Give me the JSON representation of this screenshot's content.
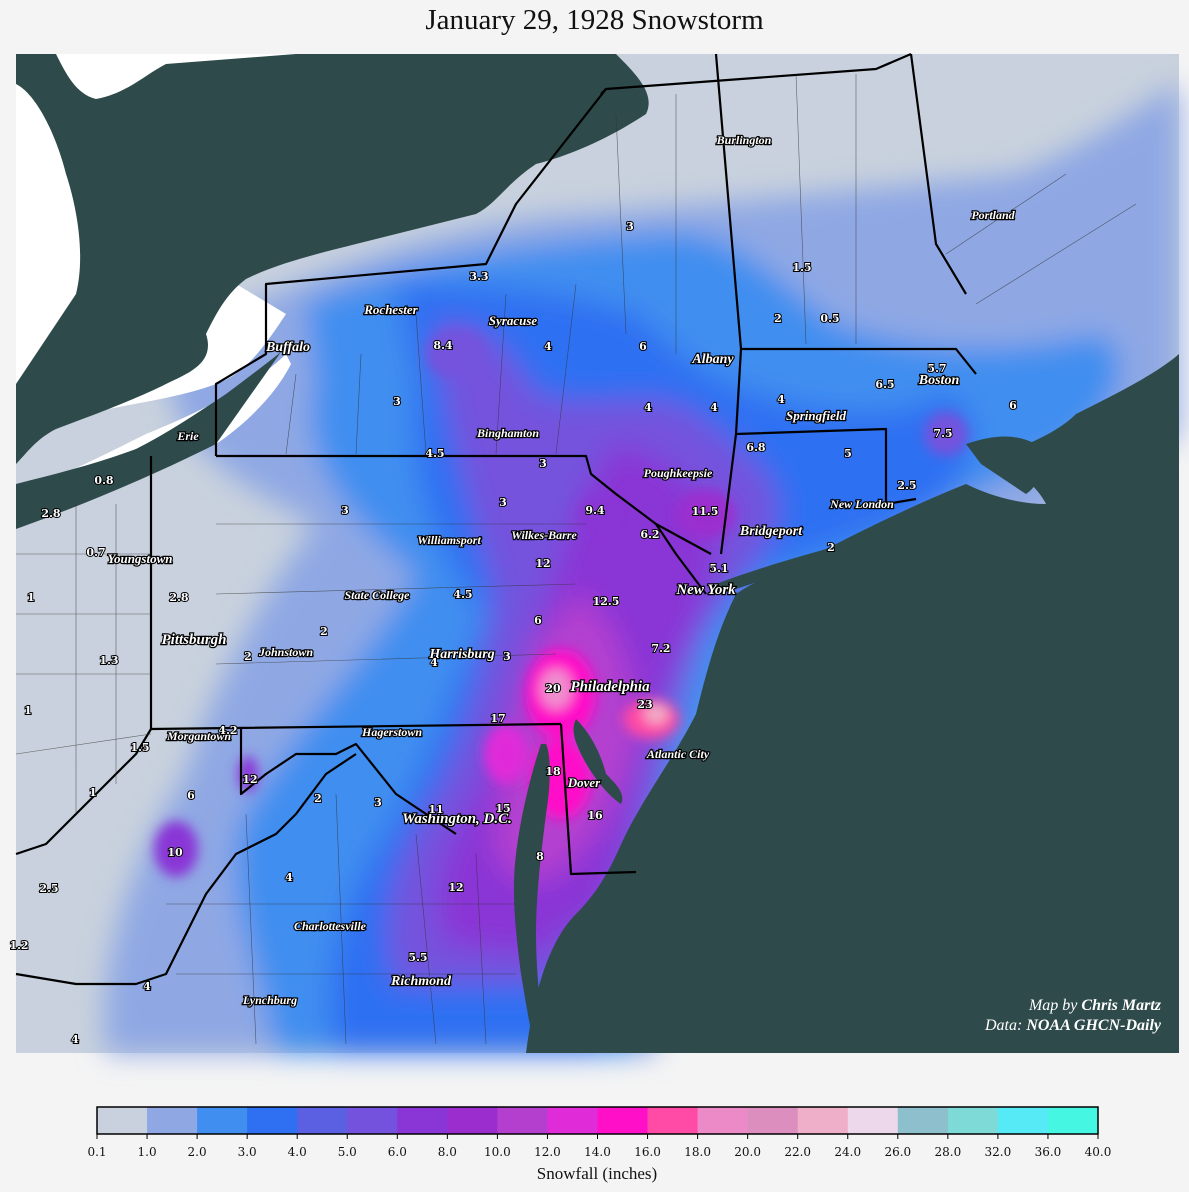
{
  "title": "January 29, 1928 Snowstorm",
  "credits": {
    "map_prefix": "Map by ",
    "map_author": "Chris Martz",
    "data_prefix": "Data: ",
    "data_source": "NOAA GHCN-Daily"
  },
  "cities": [
    {
      "name": "Burlington",
      "size": 12
    },
    {
      "name": "Portland",
      "size": 12
    },
    {
      "name": "Rochester",
      "size": 13
    },
    {
      "name": "Syracuse",
      "size": 13
    },
    {
      "name": "Buffalo",
      "size": 14
    },
    {
      "name": "Albany",
      "size": 14
    },
    {
      "name": "Boston",
      "size": 14
    },
    {
      "name": "Springfield",
      "size": 13
    },
    {
      "name": "Erie",
      "size": 12
    },
    {
      "name": "Binghamton",
      "size": 12
    },
    {
      "name": "Poughkeepsie",
      "size": 12
    },
    {
      "name": "New London",
      "size": 12
    },
    {
      "name": "Williamsport",
      "size": 12
    },
    {
      "name": "Wilkes-Barre",
      "size": 12
    },
    {
      "name": "Bridgeport",
      "size": 14
    },
    {
      "name": "Youngstown",
      "size": 13
    },
    {
      "name": "New York",
      "size": 15
    },
    {
      "name": "State College",
      "size": 12
    },
    {
      "name": "Pittsburgh",
      "size": 15
    },
    {
      "name": "Johnstown",
      "size": 12
    },
    {
      "name": "Harrisburg",
      "size": 14
    },
    {
      "name": "Philadelphia",
      "size": 15
    },
    {
      "name": "Morgantown",
      "size": 12
    },
    {
      "name": "Hagerstown",
      "size": 12
    },
    {
      "name": "Atlantic City",
      "size": 12
    },
    {
      "name": "Dover",
      "size": 13
    },
    {
      "name": "Washington, D.C.",
      "size": 15
    },
    {
      "name": "Charlottesville",
      "size": 12
    },
    {
      "name": "Richmond",
      "size": 14
    },
    {
      "name": "Lynchburg",
      "size": 12
    }
  ],
  "values": [
    "3.3",
    "8.4",
    "4",
    "3",
    "3",
    "1.5",
    "2",
    "0.5",
    "6",
    "4",
    "4",
    "5.7",
    "6.5",
    "6",
    "7.5",
    "4",
    "6.8",
    "5",
    "2.5",
    "4.5",
    "3",
    "3",
    "9.4",
    "11.5",
    "0.8",
    "2.8",
    "3",
    "6.2",
    "2",
    "0.7",
    "12",
    "5.1",
    "1",
    "2.8",
    "4.5",
    "12.5",
    "6",
    "2",
    "2",
    "1.3",
    "3",
    "4",
    "7.2",
    "20",
    "1",
    "17",
    "23",
    "4.2",
    "1.5",
    "12",
    "18",
    "1",
    "6",
    "2",
    "3",
    "11",
    "15",
    "16",
    "10",
    "8",
    "2.5",
    "4",
    "12",
    "1.2",
    "5.5",
    "4",
    "4"
  ],
  "legend": {
    "label": "Snowfall (inches)",
    "ticks": [
      "0.1",
      "1.0",
      "2.0",
      "3.0",
      "4.0",
      "5.0",
      "6.0",
      "8.0",
      "10.0",
      "12.0",
      "14.0",
      "16.0",
      "18.0",
      "20.0",
      "22.0",
      "24.0",
      "26.0",
      "28.0",
      "32.0",
      "36.0",
      "40.0"
    ],
    "colors": [
      "#c8d1dd",
      "#8fa8e4",
      "#3f8ef0",
      "#2f6ff2",
      "#5b5fe2",
      "#7552dd",
      "#8a35d6",
      "#9b2dcf",
      "#b43fcf",
      "#e02bd9",
      "#ff10c8",
      "#ff4aa6",
      "#ec8ac8",
      "#dc8fbf",
      "#efafc8",
      "#ecd8ea",
      "#8dbfcc",
      "#7ddad6",
      "#55eaf5",
      "#45f7e2"
    ]
  }
}
